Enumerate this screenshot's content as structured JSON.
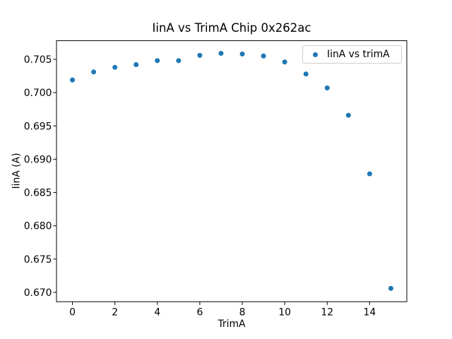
{
  "figure": {
    "background": "#ffffff"
  },
  "chart_data": {
    "type": "scatter",
    "title": "IinA vs TrimA Chip 0x262ac",
    "xlabel": "TrimA",
    "ylabel": "IinA (A)",
    "series": [
      {
        "name": "IinA vs trimA",
        "marker_color": "#1f77b4",
        "x": [
          0,
          1,
          2,
          3,
          4,
          5,
          6,
          7,
          8,
          9,
          10,
          11,
          12,
          13,
          14,
          15
        ],
        "y": [
          0.7019,
          0.7031,
          0.7038,
          0.7042,
          0.7048,
          0.7048,
          0.7056,
          0.7059,
          0.7058,
          0.7055,
          0.7046,
          0.7028,
          0.7007,
          0.6966,
          0.6878,
          0.6706
        ]
      }
    ],
    "xlim": [
      -0.75,
      15.75
    ],
    "ylim": [
      0.6686,
      0.7078
    ],
    "xticks": {
      "values": [
        0,
        2,
        4,
        6,
        8,
        10,
        12,
        14
      ],
      "labels": [
        "0",
        "2",
        "4",
        "6",
        "8",
        "10",
        "12",
        "14"
      ]
    },
    "yticks": {
      "values": [
        0.67,
        0.675,
        0.68,
        0.685,
        0.69,
        0.695,
        0.7,
        0.705
      ],
      "labels": [
        "0.670",
        "0.675",
        "0.680",
        "0.685",
        "0.690",
        "0.695",
        "0.700",
        "0.705"
      ]
    },
    "grid": false,
    "legend": {
      "position": "upper right",
      "entries": [
        "IinA vs trimA"
      ]
    },
    "axis_color": "#000000",
    "legend_border_color": "#cccccc"
  }
}
